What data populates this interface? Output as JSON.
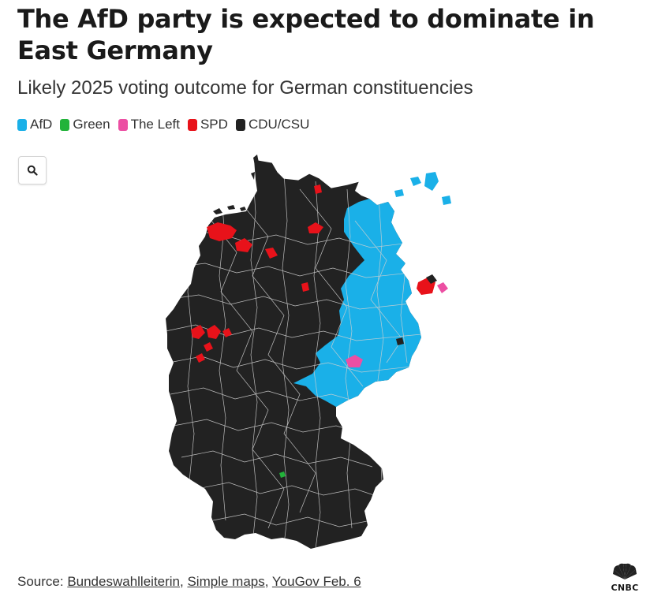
{
  "header": {
    "title": "The AfD party is expected to dominate in East Germany",
    "subtitle": "Likely 2025 voting outcome for German constituencies"
  },
  "legend": [
    {
      "label": "AfD",
      "color": "#1ab0e8"
    },
    {
      "label": "Green",
      "color": "#22b33a"
    },
    {
      "label": "The Left",
      "color": "#ec4fa3"
    },
    {
      "label": "SPD",
      "color": "#e8121a"
    },
    {
      "label": "CDU/CSU",
      "color": "#222222"
    }
  ],
  "controls": {
    "zoom_icon": "search-icon"
  },
  "map": {
    "region": "Germany",
    "border_color": "#c8c8c8",
    "colors": {
      "west": "#222222",
      "east": "#1ab0e8",
      "spd": "#e8121a",
      "left": "#ec4fa3",
      "green": "#22b33a"
    }
  },
  "footer": {
    "source_prefix": "Source: ",
    "links": [
      "Bundeswahlleiterin",
      "Simple maps",
      "YouGov Feb. 6"
    ],
    "separator": ", ",
    "logo_text": "CNBC"
  }
}
